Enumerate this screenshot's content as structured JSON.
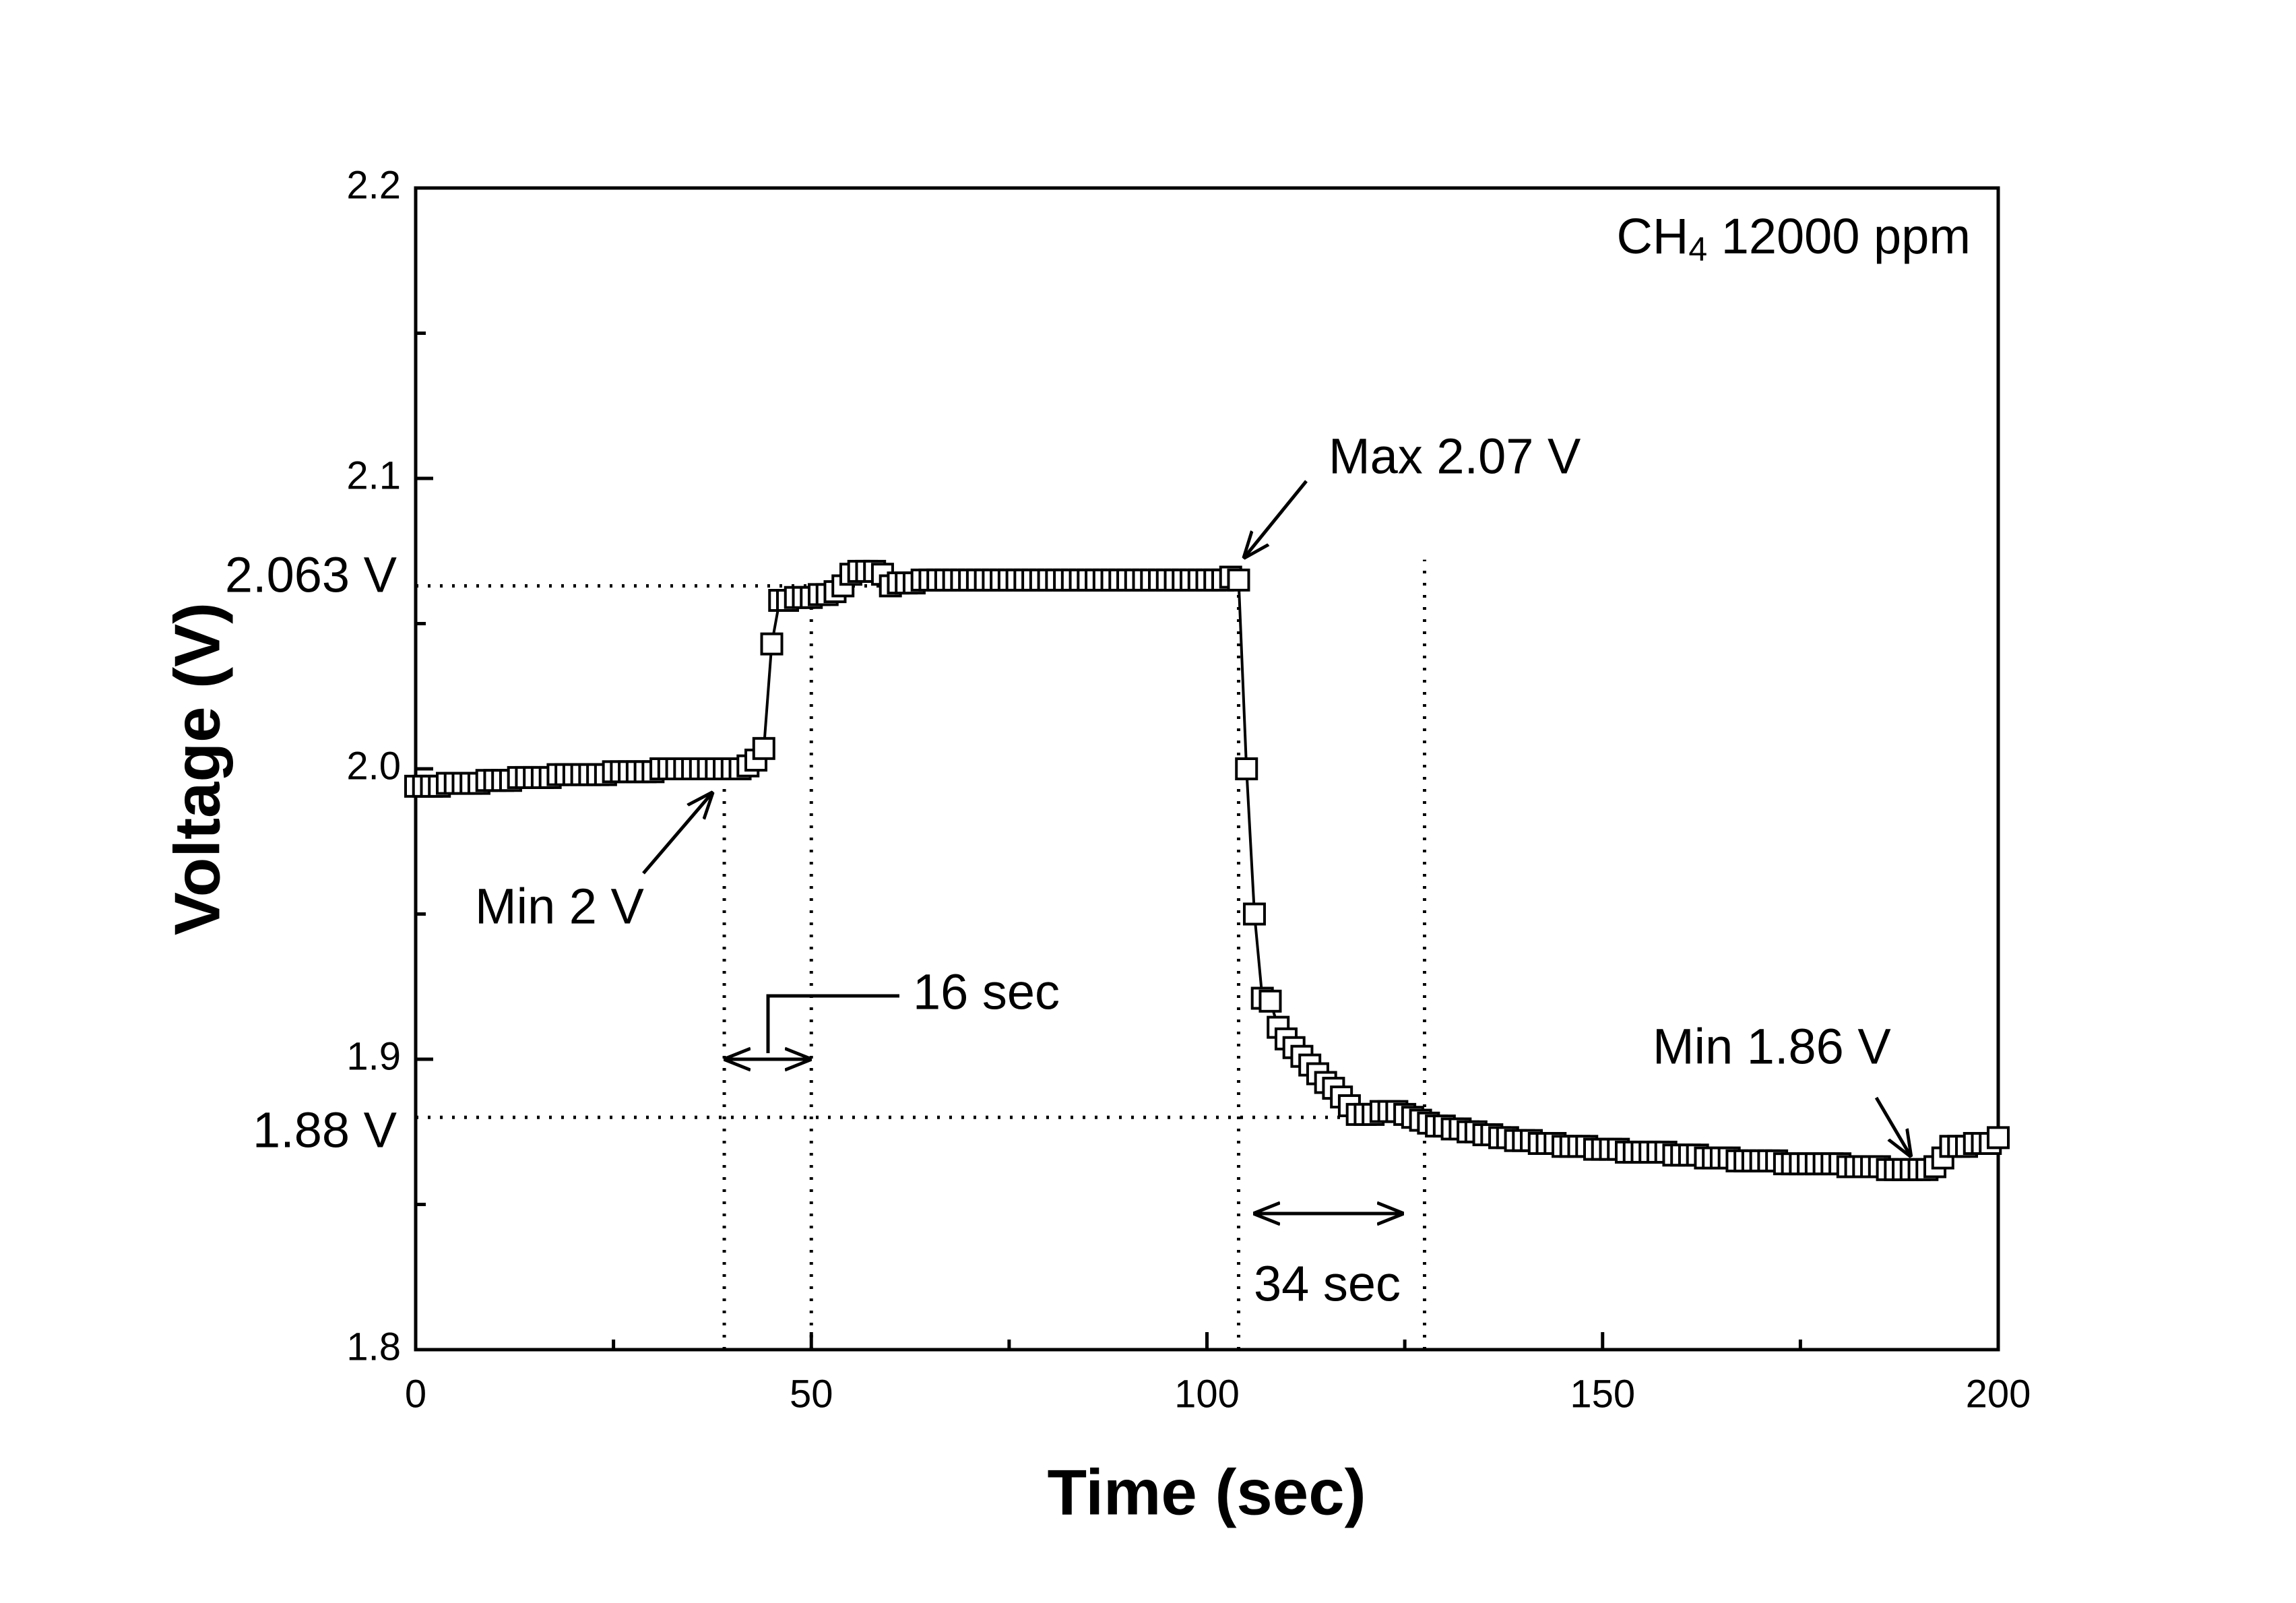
{
  "chart_data": {
    "type": "scatter",
    "xlabel": "Time (sec)",
    "ylabel": "Voltage (V)",
    "xlim": [
      0,
      200
    ],
    "ylim": [
      1.8,
      2.2
    ],
    "xticks": [
      0,
      50,
      100,
      150,
      200
    ],
    "xminorticks": [
      25,
      75,
      125,
      175
    ],
    "yticks": [
      1.8,
      1.9,
      {
        "value": 2,
        "label": "2.0"
      },
      2.1,
      2.2
    ],
    "yminorticks": [
      1.85,
      1.95,
      2.05,
      2.15
    ],
    "grid": false,
    "marker": "square",
    "color": "#000000",
    "x": [
      0,
      1,
      2,
      3,
      4,
      5,
      6,
      7,
      8,
      9,
      10,
      11,
      12,
      13,
      14,
      15,
      16,
      17,
      18,
      19,
      20,
      21,
      22,
      23,
      24,
      25,
      26,
      27,
      28,
      29,
      30,
      31,
      32,
      33,
      34,
      35,
      36,
      37,
      38,
      39,
      40,
      41,
      42,
      43,
      44,
      45,
      46,
      47,
      48,
      49,
      50,
      51,
      52,
      53,
      54,
      55,
      56,
      57,
      58,
      59,
      60,
      61,
      62,
      63,
      64,
      65,
      66,
      67,
      68,
      69,
      70,
      71,
      72,
      73,
      74,
      75,
      76,
      77,
      78,
      79,
      80,
      81,
      82,
      83,
      84,
      85,
      86,
      87,
      88,
      89,
      90,
      91,
      92,
      93,
      94,
      95,
      96,
      97,
      98,
      99,
      100,
      101,
      102,
      103,
      104,
      105,
      106,
      107,
      108,
      109,
      110,
      111,
      112,
      113,
      114,
      115,
      116,
      117,
      118,
      119,
      120,
      121,
      122,
      123,
      124,
      125,
      126,
      127,
      128,
      129,
      130,
      131,
      132,
      133,
      134,
      135,
      136,
      137,
      138,
      139,
      140,
      141,
      142,
      143,
      144,
      145,
      146,
      147,
      148,
      149,
      150,
      151,
      152,
      153,
      154,
      155,
      156,
      157,
      158,
      159,
      160,
      161,
      162,
      163,
      164,
      165,
      166,
      167,
      168,
      169,
      170,
      171,
      172,
      173,
      174,
      175,
      176,
      177,
      178,
      179,
      180,
      181,
      182,
      183,
      184,
      185,
      186,
      187,
      188,
      189,
      190,
      191,
      192,
      193,
      194,
      195,
      196,
      197,
      198,
      199,
      200
    ],
    "values": [
      1.994,
      1.994,
      1.994,
      1.994,
      1.995,
      1.995,
      1.995,
      1.995,
      1.995,
      1.996,
      1.996,
      1.996,
      1.996,
      1.997,
      1.997,
      1.997,
      1.997,
      1.997,
      1.998,
      1.998,
      1.998,
      1.998,
      1.998,
      1.998,
      1.998,
      1.999,
      1.999,
      1.999,
      1.999,
      1.999,
      1.999,
      2.0,
      2.0,
      2.0,
      2.0,
      2.0,
      2.0,
      2.0,
      2.0,
      2.0,
      2.0,
      2.0,
      2.001,
      2.003,
      2.007,
      2.043,
      2.058,
      2.058,
      2.059,
      2.059,
      2.059,
      2.06,
      2.06,
      2.061,
      2.063,
      2.067,
      2.068,
      2.068,
      2.068,
      2.067,
      2.063,
      2.064,
      2.064,
      2.064,
      2.065,
      2.065,
      2.065,
      2.065,
      2.065,
      2.065,
      2.065,
      2.065,
      2.065,
      2.065,
      2.065,
      2.065,
      2.065,
      2.065,
      2.065,
      2.065,
      2.065,
      2.065,
      2.065,
      2.065,
      2.065,
      2.065,
      2.065,
      2.065,
      2.065,
      2.065,
      2.065,
      2.065,
      2.065,
      2.065,
      2.065,
      2.065,
      2.065,
      2.065,
      2.065,
      2.065,
      2.065,
      2.065,
      2.065,
      2.066,
      2.065,
      2.0,
      1.95,
      1.921,
      1.92,
      1.911,
      1.907,
      1.904,
      1.901,
      1.898,
      1.895,
      1.892,
      1.89,
      1.887,
      1.884,
      1.881,
      1.881,
      1.881,
      1.882,
      1.882,
      1.882,
      1.881,
      1.88,
      1.879,
      1.878,
      1.877,
      1.877,
      1.876,
      1.876,
      1.875,
      1.875,
      1.874,
      1.874,
      1.873,
      1.873,
      1.872,
      1.872,
      1.872,
      1.871,
      1.871,
      1.871,
      1.87,
      1.87,
      1.87,
      1.87,
      1.869,
      1.869,
      1.869,
      1.869,
      1.868,
      1.868,
      1.868,
      1.868,
      1.868,
      1.868,
      1.867,
      1.867,
      1.867,
      1.867,
      1.866,
      1.866,
      1.866,
      1.866,
      1.865,
      1.865,
      1.865,
      1.865,
      1.865,
      1.865,
      1.864,
      1.864,
      1.864,
      1.864,
      1.864,
      1.864,
      1.864,
      1.864,
      1.863,
      1.863,
      1.863,
      1.863,
      1.863,
      1.862,
      1.862,
      1.862,
      1.862,
      1.862,
      1.862,
      1.863,
      1.866,
      1.87,
      1.87,
      1.87,
      1.871,
      1.871,
      1.871,
      1.873
    ],
    "gas_label_parts": [
      "CH",
      "4",
      " 12000 ppm"
    ],
    "annotations": [
      "Max 2.07 V",
      "Min 2 V",
      "Min 1.86 V",
      "16 sec",
      "34 sec",
      "2.063 V",
      "1.88 V"
    ],
    "hlines": [
      {
        "y": 2.063,
        "x": 104
      },
      {
        "y": 1.88,
        "x": 127.5
      }
    ],
    "vlines": [
      {
        "x": 39,
        "y": 2.0
      },
      {
        "x": 50,
        "y": 2.063
      },
      {
        "x": 104,
        "y": 2.065
      },
      {
        "x": 127.5,
        "y": 2.072
      }
    ]
  }
}
